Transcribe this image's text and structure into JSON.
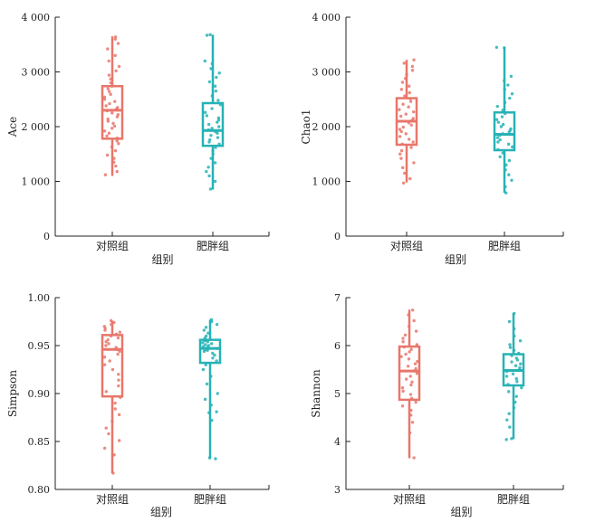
{
  "colors": {
    "control": "#E8766A",
    "obese": "#26B2B5",
    "axis": "#222222"
  },
  "chart_data": [
    {
      "type": "box",
      "xlabel": "组别",
      "ylabel": "Ace",
      "categories": [
        "对照组",
        "肥胖组"
      ],
      "ylim": [
        0,
        4000
      ],
      "yticks": [
        0,
        1000,
        2000,
        3000,
        4000
      ],
      "ytick_labels": [
        "0",
        "1 000",
        "2 000",
        "3 000",
        "4 000"
      ],
      "boxes": [
        {
          "name": "对照组",
          "min": 1100,
          "q1": 1780,
          "median": 2300,
          "q3": 2740,
          "max": 3650
        },
        {
          "name": "肥胖组",
          "min": 850,
          "q1": 1650,
          "median": 1930,
          "q3": 2430,
          "max": 3680
        }
      ],
      "points": [
        [
          1120,
          1180,
          1280,
          1350,
          1420,
          1480,
          1560,
          1630,
          1690,
          1740,
          1790,
          1830,
          1880,
          1920,
          1970,
          2010,
          2060,
          2100,
          2140,
          2180,
          2220,
          2250,
          2290,
          2320,
          2350,
          2380,
          2420,
          2460,
          2500,
          2540,
          2590,
          2640,
          2690,
          2740,
          2800,
          2870,
          2940,
          3020,
          3100,
          3200,
          3300,
          3420,
          3520,
          3600,
          3640
        ],
        [
          860,
          1000,
          1100,
          1180,
          1260,
          1340,
          1420,
          1500,
          1560,
          1620,
          1680,
          1720,
          1760,
          1800,
          1840,
          1880,
          1910,
          1940,
          1970,
          2000,
          2040,
          2080,
          2120,
          2160,
          2200,
          2260,
          2330,
          2400,
          2480,
          2560,
          2650,
          2740,
          2820,
          2900,
          2980,
          3060,
          3150,
          3200,
          3670,
          3680
        ]
      ]
    },
    {
      "type": "box",
      "xlabel": "组别",
      "ylabel": "Chao1",
      "categories": [
        "对照组",
        "肥胖组"
      ],
      "ylim": [
        0,
        4000
      ],
      "yticks": [
        0,
        1000,
        2000,
        3000,
        4000
      ],
      "ytick_labels": [
        "0",
        "1 000",
        "2 000",
        "3 000",
        "4 000"
      ],
      "boxes": [
        {
          "name": "对照组",
          "min": 980,
          "q1": 1670,
          "median": 2100,
          "q3": 2520,
          "max": 3220
        },
        {
          "name": "肥胖组",
          "min": 790,
          "q1": 1570,
          "median": 1860,
          "q3": 2260,
          "max": 3450
        }
      ],
      "points": [
        [
          970,
          1050,
          1150,
          1250,
          1340,
          1420,
          1500,
          1560,
          1620,
          1680,
          1720,
          1770,
          1820,
          1870,
          1910,
          1950,
          1990,
          2030,
          2070,
          2110,
          2150,
          2190,
          2230,
          2270,
          2310,
          2360,
          2410,
          2460,
          2510,
          2560,
          2620,
          2680,
          2740,
          2810,
          2880,
          2950,
          3030,
          3100,
          3160,
          3220
        ],
        [
          790,
          900,
          1020,
          1120,
          1210,
          1300,
          1380,
          1450,
          1520,
          1580,
          1630,
          1680,
          1720,
          1760,
          1800,
          1840,
          1870,
          1900,
          1930,
          1960,
          2000,
          2040,
          2080,
          2130,
          2180,
          2240,
          2300,
          2370,
          2440,
          2520,
          2600,
          2680,
          2760,
          2840,
          2920,
          3440,
          3450
        ]
      ]
    },
    {
      "type": "box",
      "xlabel": "组别",
      "ylabel": "Simpson",
      "categories": [
        "对照组",
        "肥胖组"
      ],
      "ylim": [
        0.8,
        1.0
      ],
      "yticks": [
        0.8,
        0.85,
        0.9,
        0.95,
        1.0
      ],
      "ytick_labels": [
        "0.80",
        "0.85",
        "0.90",
        "0.95",
        "1.00"
      ],
      "boxes": [
        {
          "name": "对照组",
          "min": 0.817,
          "q1": 0.897,
          "median": 0.946,
          "q3": 0.961,
          "max": 0.976
        },
        {
          "name": "肥胖组",
          "min": 0.832,
          "q1": 0.932,
          "median": 0.947,
          "q3": 0.956,
          "max": 0.977
        }
      ],
      "points": [
        [
          0.817,
          0.836,
          0.843,
          0.851,
          0.858,
          0.864,
          0.871,
          0.878,
          0.884,
          0.89,
          0.896,
          0.902,
          0.908,
          0.914,
          0.92,
          0.925,
          0.93,
          0.934,
          0.938,
          0.941,
          0.944,
          0.946,
          0.948,
          0.95,
          0.952,
          0.954,
          0.956,
          0.958,
          0.96,
          0.962,
          0.964,
          0.966,
          0.968,
          0.97,
          0.972,
          0.974,
          0.976
        ],
        [
          0.832,
          0.833,
          0.872,
          0.88,
          0.881,
          0.888,
          0.894,
          0.9,
          0.91,
          0.918,
          0.925,
          0.93,
          0.934,
          0.937,
          0.94,
          0.942,
          0.944,
          0.945,
          0.946,
          0.947,
          0.948,
          0.949,
          0.95,
          0.951,
          0.952,
          0.953,
          0.954,
          0.955,
          0.956,
          0.958,
          0.96,
          0.963,
          0.966,
          0.969,
          0.972,
          0.975,
          0.977
        ]
      ]
    },
    {
      "type": "box",
      "xlabel": "组别",
      "ylabel": "Shannon",
      "categories": [
        "对照组",
        "肥胖组"
      ],
      "ylim": [
        3,
        7
      ],
      "yticks": [
        3,
        4,
        5,
        6,
        7
      ],
      "ytick_labels": [
        "3",
        "4",
        "5",
        "6",
        "7"
      ],
      "boxes": [
        {
          "name": "对照组",
          "min": 3.65,
          "q1": 4.87,
          "median": 5.47,
          "q3": 5.98,
          "max": 6.75
        },
        {
          "name": "肥胖组",
          "min": 4.05,
          "q1": 5.17,
          "median": 5.48,
          "q3": 5.82,
          "max": 6.68
        }
      ],
      "points": [
        [
          3.66,
          4.18,
          4.4,
          4.55,
          4.65,
          4.74,
          4.82,
          4.9,
          4.98,
          5.05,
          5.12,
          5.18,
          5.24,
          5.3,
          5.36,
          5.42,
          5.47,
          5.52,
          5.57,
          5.62,
          5.67,
          5.72,
          5.77,
          5.82,
          5.87,
          5.92,
          5.97,
          6.02,
          6.08,
          6.15,
          6.22,
          6.3,
          6.4,
          6.52,
          6.64,
          6.74
        ],
        [
          4.04,
          4.06,
          4.3,
          4.45,
          4.58,
          4.7,
          4.82,
          4.94,
          5.04,
          5.12,
          5.19,
          5.25,
          5.31,
          5.36,
          5.41,
          5.46,
          5.5,
          5.54,
          5.58,
          5.62,
          5.66,
          5.7,
          5.74,
          5.79,
          5.84,
          5.9,
          5.96,
          6.02,
          6.1,
          6.2,
          6.35,
          6.5,
          6.67
        ]
      ]
    }
  ]
}
